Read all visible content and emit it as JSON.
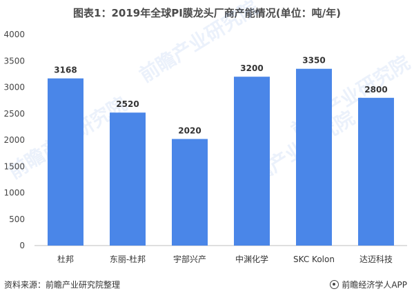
{
  "title": "图表1：2019年全球PI膜龙头厂商产能情况(单位：吨/年)",
  "watermark": "前瞻产业研究院",
  "footer": {
    "source": "资料来源：前瞻产业研究院整理",
    "brand": "前瞻经济学人APP"
  },
  "colors": {
    "bar": "#4a86e8",
    "axis": "#bfbfbf"
  },
  "chart_data": {
    "type": "bar",
    "title": "图表1：2019年全球PI膜龙头厂商产能情况(单位：吨/年)",
    "categories": [
      "杜邦",
      "东丽-杜邦",
      "宇部兴产",
      "中渊化学",
      "SKC Kolon",
      "达迈科技"
    ],
    "values": [
      3168,
      2520,
      2020,
      3200,
      3350,
      2800
    ],
    "value_labels": [
      "3168",
      "2520",
      "2020",
      "3200",
      "3350",
      "2800"
    ],
    "yticks": [
      "0",
      "500",
      "1000",
      "1500",
      "2000",
      "2500",
      "3000",
      "3500",
      "4000"
    ],
    "ylim": [
      0,
      4000
    ],
    "xlabel": "",
    "ylabel": "",
    "grid": false,
    "legend": "none"
  }
}
